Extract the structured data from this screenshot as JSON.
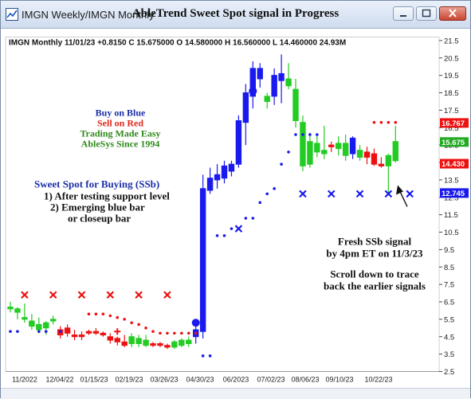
{
  "window": {
    "tab_title": "IMGN  Weekly/IMGN  Monthly",
    "title": "AbleTrend Sweet Spot signal in Progress"
  },
  "chart_header": "IMGN  Monthly 11/01/23 +0.8150 C 15.675000 O 14.580000 H 16.560000 L 14.460000 24.93M",
  "annotations": {
    "legend_lines": [
      {
        "text": "Buy on Blue",
        "color": "#1b2fa8"
      },
      {
        "text": "Sell on Red",
        "color": "#e0281b"
      },
      {
        "text": "Trading Made Easy",
        "color": "#2f8a1c"
      },
      {
        "text": "AbleSys Since 1994",
        "color": "#2f8a1c"
      }
    ],
    "sweet_spot_title": "Sweet Spot for Buying (SSb)",
    "sweet_spot_lines": [
      "1) After testing support level",
      "2) Emerging blue bar",
      "or closeup bar"
    ],
    "fresh_signal_lines": [
      "Fresh SSb signal",
      "by 4pm ET on 11/3/23"
    ],
    "scroll_lines": [
      "Scroll down to trace",
      "back the earlier signals"
    ]
  },
  "colors": {
    "blue": "#1a1aee",
    "red": "#ee1111",
    "green": "#22cc22",
    "navy": "#1b2fa8"
  },
  "chart_data": {
    "type": "candlestick",
    "title": "IMGN  Monthly 11/01/23 +0.8150 C 15.675000 O 14.580000 H 16.560000 L 14.460000 24.93M",
    "ylim": [
      2.5,
      21.7
    ],
    "y_ticks": [
      21.5,
      20.5,
      19.5,
      18.5,
      17.5,
      16.5,
      15.5,
      14.5,
      13.5,
      12.5,
      11.5,
      10.5,
      9.5,
      8.5,
      7.5,
      6.5,
      5.5,
      4.5,
      3.5,
      2.5
    ],
    "x_labels": [
      "11/2022",
      "12/04/22",
      "01/15/23",
      "02/19/23",
      "03/26/23",
      "04/30/23",
      "06/2023",
      "07/02/23",
      "08/06/23",
      "09/10/23",
      "10/22/23"
    ],
    "price_labels": [
      {
        "value": 16.767,
        "text": "16.767",
        "color": "#ee1111"
      },
      {
        "value": 15.675,
        "text": "15.675",
        "color": "#22aa22"
      },
      {
        "value": 14.43,
        "text": "14.430",
        "color": "#ee1111"
      },
      {
        "value": 12.745,
        "text": "12.745",
        "color": "#1a1aee"
      }
    ],
    "candles": [
      {
        "o": 6.2,
        "h": 6.5,
        "l": 5.9,
        "c": 6.1,
        "color": "green"
      },
      {
        "o": 6.1,
        "h": 6.2,
        "l": 5.5,
        "c": 5.9,
        "color": "green"
      },
      {
        "o": 5.6,
        "h": 6.4,
        "l": 5.3,
        "c": 5.5,
        "color": "green"
      },
      {
        "o": 5.4,
        "h": 5.8,
        "l": 4.9,
        "c": 5.1,
        "color": "green"
      },
      {
        "o": 5.2,
        "h": 5.6,
        "l": 4.7,
        "c": 4.9,
        "color": "green"
      },
      {
        "o": 5.0,
        "h": 5.4,
        "l": 4.6,
        "c": 5.3,
        "color": "green"
      },
      {
        "o": 5.4,
        "h": 5.7,
        "l": 5.2,
        "c": 5.5,
        "color": "green"
      },
      {
        "o": 4.9,
        "h": 5.1,
        "l": 4.4,
        "c": 4.6,
        "color": "red"
      },
      {
        "o": 4.7,
        "h": 5.2,
        "l": 4.5,
        "c": 5.0,
        "color": "red"
      },
      {
        "o": 4.6,
        "h": 4.9,
        "l": 4.3,
        "c": 4.5,
        "color": "red"
      },
      {
        "o": 4.5,
        "h": 4.8,
        "l": 4.3,
        "c": 4.6,
        "color": "red"
      },
      {
        "o": 4.7,
        "h": 4.9,
        "l": 4.6,
        "c": 4.8,
        "color": "red"
      },
      {
        "o": 4.8,
        "h": 5.0,
        "l": 4.6,
        "c": 4.7,
        "color": "red"
      },
      {
        "o": 4.6,
        "h": 4.8,
        "l": 4.5,
        "c": 4.7,
        "color": "red"
      },
      {
        "o": 4.5,
        "h": 4.7,
        "l": 4.1,
        "c": 4.3,
        "color": "red"
      },
      {
        "o": 4.2,
        "h": 4.5,
        "l": 4.0,
        "c": 4.4,
        "color": "red"
      },
      {
        "o": 4.2,
        "h": 4.6,
        "l": 3.9,
        "c": 4.0,
        "color": "red"
      },
      {
        "o": 4.1,
        "h": 4.7,
        "l": 3.9,
        "c": 4.5,
        "color": "green"
      },
      {
        "o": 4.1,
        "h": 4.6,
        "l": 3.9,
        "c": 4.4,
        "color": "green"
      },
      {
        "o": 4.0,
        "h": 4.6,
        "l": 3.9,
        "c": 4.3,
        "color": "green"
      },
      {
        "o": 4.0,
        "h": 4.2,
        "l": 3.9,
        "c": 4.1,
        "color": "red"
      },
      {
        "o": 4.0,
        "h": 4.2,
        "l": 3.9,
        "c": 4.1,
        "color": "red"
      },
      {
        "o": 3.9,
        "h": 4.1,
        "l": 3.8,
        "c": 4.0,
        "color": "red"
      },
      {
        "o": 3.9,
        "h": 4.3,
        "l": 3.8,
        "c": 4.2,
        "color": "green"
      },
      {
        "o": 4.0,
        "h": 4.4,
        "l": 3.9,
        "c": 4.3,
        "color": "green"
      },
      {
        "o": 4.1,
        "h": 4.5,
        "l": 3.9,
        "c": 4.3,
        "color": "green"
      },
      {
        "o": 4.5,
        "h": 5.2,
        "l": 4.1,
        "c": 4.9,
        "color": "blue"
      },
      {
        "o": 4.8,
        "h": 13.8,
        "l": 4.4,
        "c": 13.0,
        "color": "blue"
      },
      {
        "o": 12.9,
        "h": 14.2,
        "l": 12.7,
        "c": 13.6,
        "color": "blue"
      },
      {
        "o": 13.5,
        "h": 14.4,
        "l": 13.0,
        "c": 13.8,
        "color": "blue"
      },
      {
        "o": 13.6,
        "h": 14.6,
        "l": 13.3,
        "c": 14.3,
        "color": "blue"
      },
      {
        "o": 14.0,
        "h": 14.6,
        "l": 13.7,
        "c": 14.4,
        "color": "blue"
      },
      {
        "o": 14.4,
        "h": 17.2,
        "l": 14.2,
        "c": 16.9,
        "color": "blue"
      },
      {
        "o": 16.8,
        "h": 19.0,
        "l": 15.5,
        "c": 18.5,
        "color": "blue"
      },
      {
        "o": 18.3,
        "h": 20.3,
        "l": 17.6,
        "c": 19.9,
        "color": "blue"
      },
      {
        "o": 19.9,
        "h": 20.2,
        "l": 18.8,
        "c": 19.3,
        "color": "blue"
      },
      {
        "o": 18.0,
        "h": 18.5,
        "l": 17.6,
        "c": 18.3,
        "color": "green"
      },
      {
        "o": 18.3,
        "h": 19.9,
        "l": 17.8,
        "c": 19.5,
        "color": "blue"
      },
      {
        "o": 19.2,
        "h": 20.7,
        "l": 17.9,
        "c": 19.6,
        "color": "blue"
      },
      {
        "o": 19.3,
        "h": 20.2,
        "l": 18.7,
        "c": 18.9,
        "color": "green"
      },
      {
        "o": 18.7,
        "h": 19.3,
        "l": 16.5,
        "c": 16.9,
        "color": "green"
      },
      {
        "o": 16.8,
        "h": 17.2,
        "l": 14.0,
        "c": 14.3,
        "color": "green"
      },
      {
        "o": 14.4,
        "h": 16.2,
        "l": 14.2,
        "c": 15.7,
        "color": "green"
      },
      {
        "o": 15.6,
        "h": 16.1,
        "l": 14.8,
        "c": 15.1,
        "color": "green"
      },
      {
        "o": 15.0,
        "h": 16.6,
        "l": 14.7,
        "c": 15.2,
        "color": "green"
      },
      {
        "o": 15.4,
        "h": 15.7,
        "l": 15.1,
        "c": 15.5,
        "color": "red"
      },
      {
        "o": 15.3,
        "h": 16.0,
        "l": 14.9,
        "c": 15.6,
        "color": "green"
      },
      {
        "o": 15.6,
        "h": 16.1,
        "l": 14.6,
        "c": 14.9,
        "color": "green"
      },
      {
        "o": 15.0,
        "h": 16.0,
        "l": 14.7,
        "c": 15.9,
        "color": "blue"
      },
      {
        "o": 15.2,
        "h": 15.5,
        "l": 14.6,
        "c": 14.8,
        "color": "green"
      },
      {
        "o": 14.8,
        "h": 15.4,
        "l": 14.4,
        "c": 15.1,
        "color": "red"
      },
      {
        "o": 15.0,
        "h": 15.3,
        "l": 14.3,
        "c": 14.4,
        "color": "red"
      },
      {
        "o": 14.4,
        "h": 14.8,
        "l": 14.2,
        "c": 14.3,
        "color": "red"
      },
      {
        "o": 14.3,
        "h": 15.0,
        "l": 12.7,
        "c": 14.9,
        "color": "green"
      },
      {
        "o": 14.6,
        "h": 16.6,
        "l": 14.5,
        "c": 15.7,
        "color": "green"
      }
    ],
    "support_dots": [
      {
        "i": 0,
        "v": 4.8
      },
      {
        "i": 1,
        "v": 4.8
      },
      {
        "i": 4,
        "v": 4.8
      },
      {
        "i": 5,
        "v": 4.8
      },
      {
        "i": 7,
        "v": 4.8
      },
      {
        "i": 27,
        "v": 3.4
      },
      {
        "i": 28,
        "v": 3.4
      },
      {
        "i": 29,
        "v": 10.3
      },
      {
        "i": 30,
        "v": 10.3
      },
      {
        "i": 31,
        "v": 10.7
      },
      {
        "i": 32,
        "v": 10.7
      },
      {
        "i": 33,
        "v": 11.3
      },
      {
        "i": 34,
        "v": 11.3
      },
      {
        "i": 35,
        "v": 12.2
      },
      {
        "i": 36,
        "v": 12.7
      },
      {
        "i": 37,
        "v": 13.0
      },
      {
        "i": 38,
        "v": 14.4
      },
      {
        "i": 39,
        "v": 15.1
      },
      {
        "i": 40,
        "v": 16.1
      },
      {
        "i": 41,
        "v": 16.1
      },
      {
        "i": 42,
        "v": 16.1
      },
      {
        "i": 43,
        "v": 16.1
      }
    ],
    "resistance_dots": [
      {
        "i": 11,
        "v": 5.8
      },
      {
        "i": 12,
        "v": 5.8
      },
      {
        "i": 13,
        "v": 5.8
      },
      {
        "i": 14,
        "v": 5.7
      },
      {
        "i": 15,
        "v": 5.6
      },
      {
        "i": 16,
        "v": 5.5
      },
      {
        "i": 17,
        "v": 5.3
      },
      {
        "i": 18,
        "v": 5.2
      },
      {
        "i": 19,
        "v": 5.0
      },
      {
        "i": 20,
        "v": 4.8
      },
      {
        "i": 21,
        "v": 4.7
      },
      {
        "i": 22,
        "v": 4.7
      },
      {
        "i": 23,
        "v": 4.7
      },
      {
        "i": 24,
        "v": 4.7
      },
      {
        "i": 25,
        "v": 4.7
      },
      {
        "i": 26,
        "v": 4.7
      },
      {
        "i": 51,
        "v": 16.8
      },
      {
        "i": 52,
        "v": 16.8
      },
      {
        "i": 53,
        "v": 16.8
      },
      {
        "i": 54,
        "v": 16.8
      }
    ],
    "red_x": [
      {
        "i": 2,
        "v": 6.9
      },
      {
        "i": 6,
        "v": 6.9
      },
      {
        "i": 10,
        "v": 6.9
      },
      {
        "i": 14,
        "v": 6.9
      },
      {
        "i": 18,
        "v": 6.9
      },
      {
        "i": 22,
        "v": 6.9
      }
    ],
    "blue_x": [
      {
        "i": 32,
        "v": 10.7
      },
      {
        "i": 41,
        "v": 12.7
      },
      {
        "i": 45,
        "v": 12.7
      },
      {
        "i": 49,
        "v": 12.7
      },
      {
        "i": 53,
        "v": 12.7
      },
      {
        "i": 56,
        "v": 12.7
      }
    ],
    "big_dots": [
      {
        "i": 26,
        "v": 5.3
      },
      {
        "i": 34,
        "v": 18.6
      }
    ],
    "crosses": [
      {
        "i": 15,
        "v": 4.8
      }
    ]
  }
}
